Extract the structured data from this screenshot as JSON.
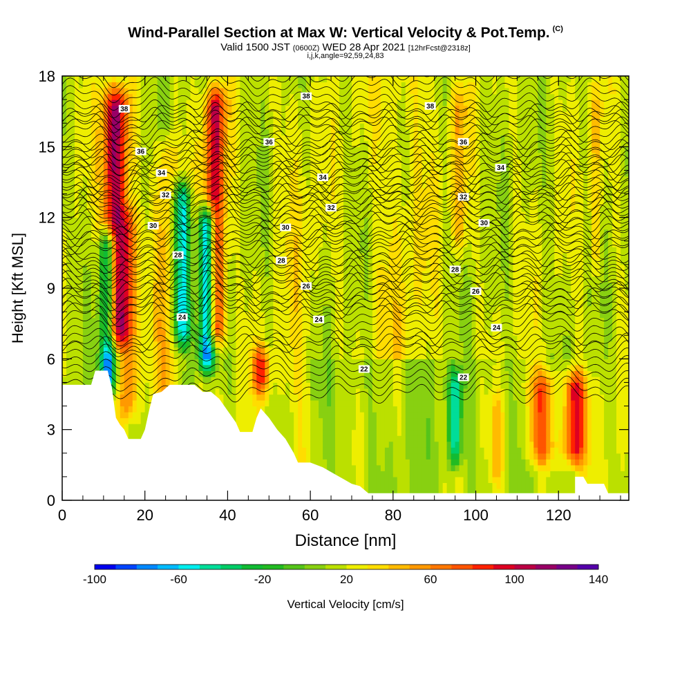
{
  "header": {
    "title": "Wind-Parallel Section at Max W: Vertical Velocity & Pot.Temp.",
    "copyright": "(C)",
    "valid_prefix": "Valid 1500 JST",
    "valid_utc": "(0600Z)",
    "valid_date": "WED 28 Apr 2021",
    "forecast_info": "[12hrFcst@2318z]",
    "grid_info": "i,j,k,angle=92,59,24,83"
  },
  "colorbar": {
    "label": "Vertical Velocity [cm/s]",
    "min": -100,
    "max": 140,
    "step": 10,
    "tick_labels": [
      "-100",
      "-60",
      "-20",
      "20",
      "60",
      "100",
      "140"
    ],
    "colors": [
      "#0000ee",
      "#0044ff",
      "#0088ff",
      "#00bbff",
      "#00eeee",
      "#00dd99",
      "#00cc66",
      "#11bb33",
      "#22bb22",
      "#55c41a",
      "#88d011",
      "#bbe000",
      "#eeee00",
      "#ffdd00",
      "#ffbb00",
      "#ff9900",
      "#ff7700",
      "#ff5500",
      "#ff2200",
      "#dd0022",
      "#bb0044",
      "#990066",
      "#770088",
      "#5500aa"
    ]
  },
  "chart_data": {
    "type": "heatmap",
    "xlabel": "Distance [nm]",
    "ylabel": "Height [Kft MSL]",
    "xlim": [
      0,
      137
    ],
    "ylim": [
      0,
      18
    ],
    "xticks": [
      "0",
      "20",
      "40",
      "60",
      "80",
      "100",
      "120"
    ],
    "yticks": [
      "0",
      "3",
      "6",
      "9",
      "12",
      "15",
      "18"
    ],
    "variable": "Vertical Velocity [cm/s]",
    "contour_variable": "Potential Temperature",
    "columns": [
      {
        "x": 11,
        "w": 4,
        "peak": -80,
        "bottom": 4,
        "top": 12
      },
      {
        "x": 13,
        "w": 6,
        "peak": 115,
        "bottom": 6,
        "top": 18
      },
      {
        "x": 16,
        "w": 4,
        "peak": 60,
        "bottom": 3,
        "top": 13
      },
      {
        "x": 25,
        "w": 5,
        "peak": 45,
        "bottom": 2,
        "top": 16
      },
      {
        "x": 29,
        "w": 4,
        "peak": -60,
        "bottom": 6,
        "top": 14
      },
      {
        "x": 35,
        "w": 4,
        "peak": -90,
        "bottom": 5,
        "top": 13
      },
      {
        "x": 37,
        "w": 5,
        "peak": 100,
        "bottom": 6,
        "top": 18
      },
      {
        "x": 48,
        "w": 4,
        "peak": 80,
        "bottom": 4,
        "top": 7
      },
      {
        "x": 57,
        "w": 8,
        "peak": 28,
        "bottom": 0,
        "top": 18
      },
      {
        "x": 96,
        "w": 4,
        "peak": 45,
        "bottom": 10,
        "top": 18
      },
      {
        "x": 95,
        "w": 3,
        "peak": -45,
        "bottom": 1,
        "top": 6
      },
      {
        "x": 105,
        "w": 3,
        "peak": 45,
        "bottom": 0,
        "top": 5
      },
      {
        "x": 116,
        "w": 6,
        "peak": 75,
        "bottom": 1,
        "top": 6
      },
      {
        "x": 124,
        "w": 5,
        "peak": 100,
        "bottom": 1,
        "top": 6
      },
      {
        "x": 129,
        "w": 3,
        "peak": 40,
        "bottom": 9,
        "top": 18
      }
    ],
    "terrain": [
      [
        0,
        4.9
      ],
      [
        7,
        4.9
      ],
      [
        8,
        5.5
      ],
      [
        11,
        5.5
      ],
      [
        12,
        4.8
      ],
      [
        13,
        3.5
      ],
      [
        14,
        3.2
      ],
      [
        15,
        3.0
      ],
      [
        16,
        2.6
      ],
      [
        19,
        2.6
      ],
      [
        20,
        3.0
      ],
      [
        21,
        3.8
      ],
      [
        22,
        4.5
      ],
      [
        24,
        4.6
      ],
      [
        26,
        4.9
      ],
      [
        32,
        4.9
      ],
      [
        34,
        4.6
      ],
      [
        36,
        4.6
      ],
      [
        38,
        4.3
      ],
      [
        40,
        3.8
      ],
      [
        42,
        3.3
      ],
      [
        43,
        2.9
      ],
      [
        46,
        2.9
      ],
      [
        47,
        3.5
      ],
      [
        48,
        3.9
      ],
      [
        50,
        3.5
      ],
      [
        52,
        3.0
      ],
      [
        54,
        2.6
      ],
      [
        56,
        2.0
      ],
      [
        57,
        1.6
      ],
      [
        60,
        1.6
      ],
      [
        63,
        1.4
      ],
      [
        66,
        1.1
      ],
      [
        68,
        0.9
      ],
      [
        70,
        0.7
      ],
      [
        72,
        0.6
      ],
      [
        74,
        0.3
      ],
      [
        78,
        0.3
      ],
      [
        124,
        0.3
      ],
      [
        124,
        1.0
      ],
      [
        126,
        1.0
      ],
      [
        127,
        0.7
      ],
      [
        131,
        0.7
      ],
      [
        132,
        0.3
      ],
      [
        137,
        0.3
      ]
    ],
    "contours": [
      {
        "level": 22,
        "y": 5.5,
        "label_x": [
          73,
          97
        ]
      },
      {
        "level": 24,
        "y": 7.6,
        "label_x": [
          29,
          62,
          105
        ]
      },
      {
        "level": 26,
        "y": 9.0,
        "label_x": [
          59,
          100
        ]
      },
      {
        "level": 28,
        "y": 10.2,
        "label_x": [
          28,
          53,
          95
        ]
      },
      {
        "level": 30,
        "y": 11.7,
        "label_x": [
          22,
          54,
          102
        ]
      },
      {
        "level": 32,
        "y": 12.8,
        "label_x": [
          25,
          65,
          97
        ]
      },
      {
        "level": 34,
        "y": 14.0,
        "label_x": [
          24,
          63,
          106
        ]
      },
      {
        "level": 36,
        "y": 15.2,
        "label_x": [
          19,
          50,
          97
        ]
      },
      {
        "level": 38,
        "y": 16.9,
        "label_x": [
          15,
          59,
          89
        ]
      }
    ]
  }
}
